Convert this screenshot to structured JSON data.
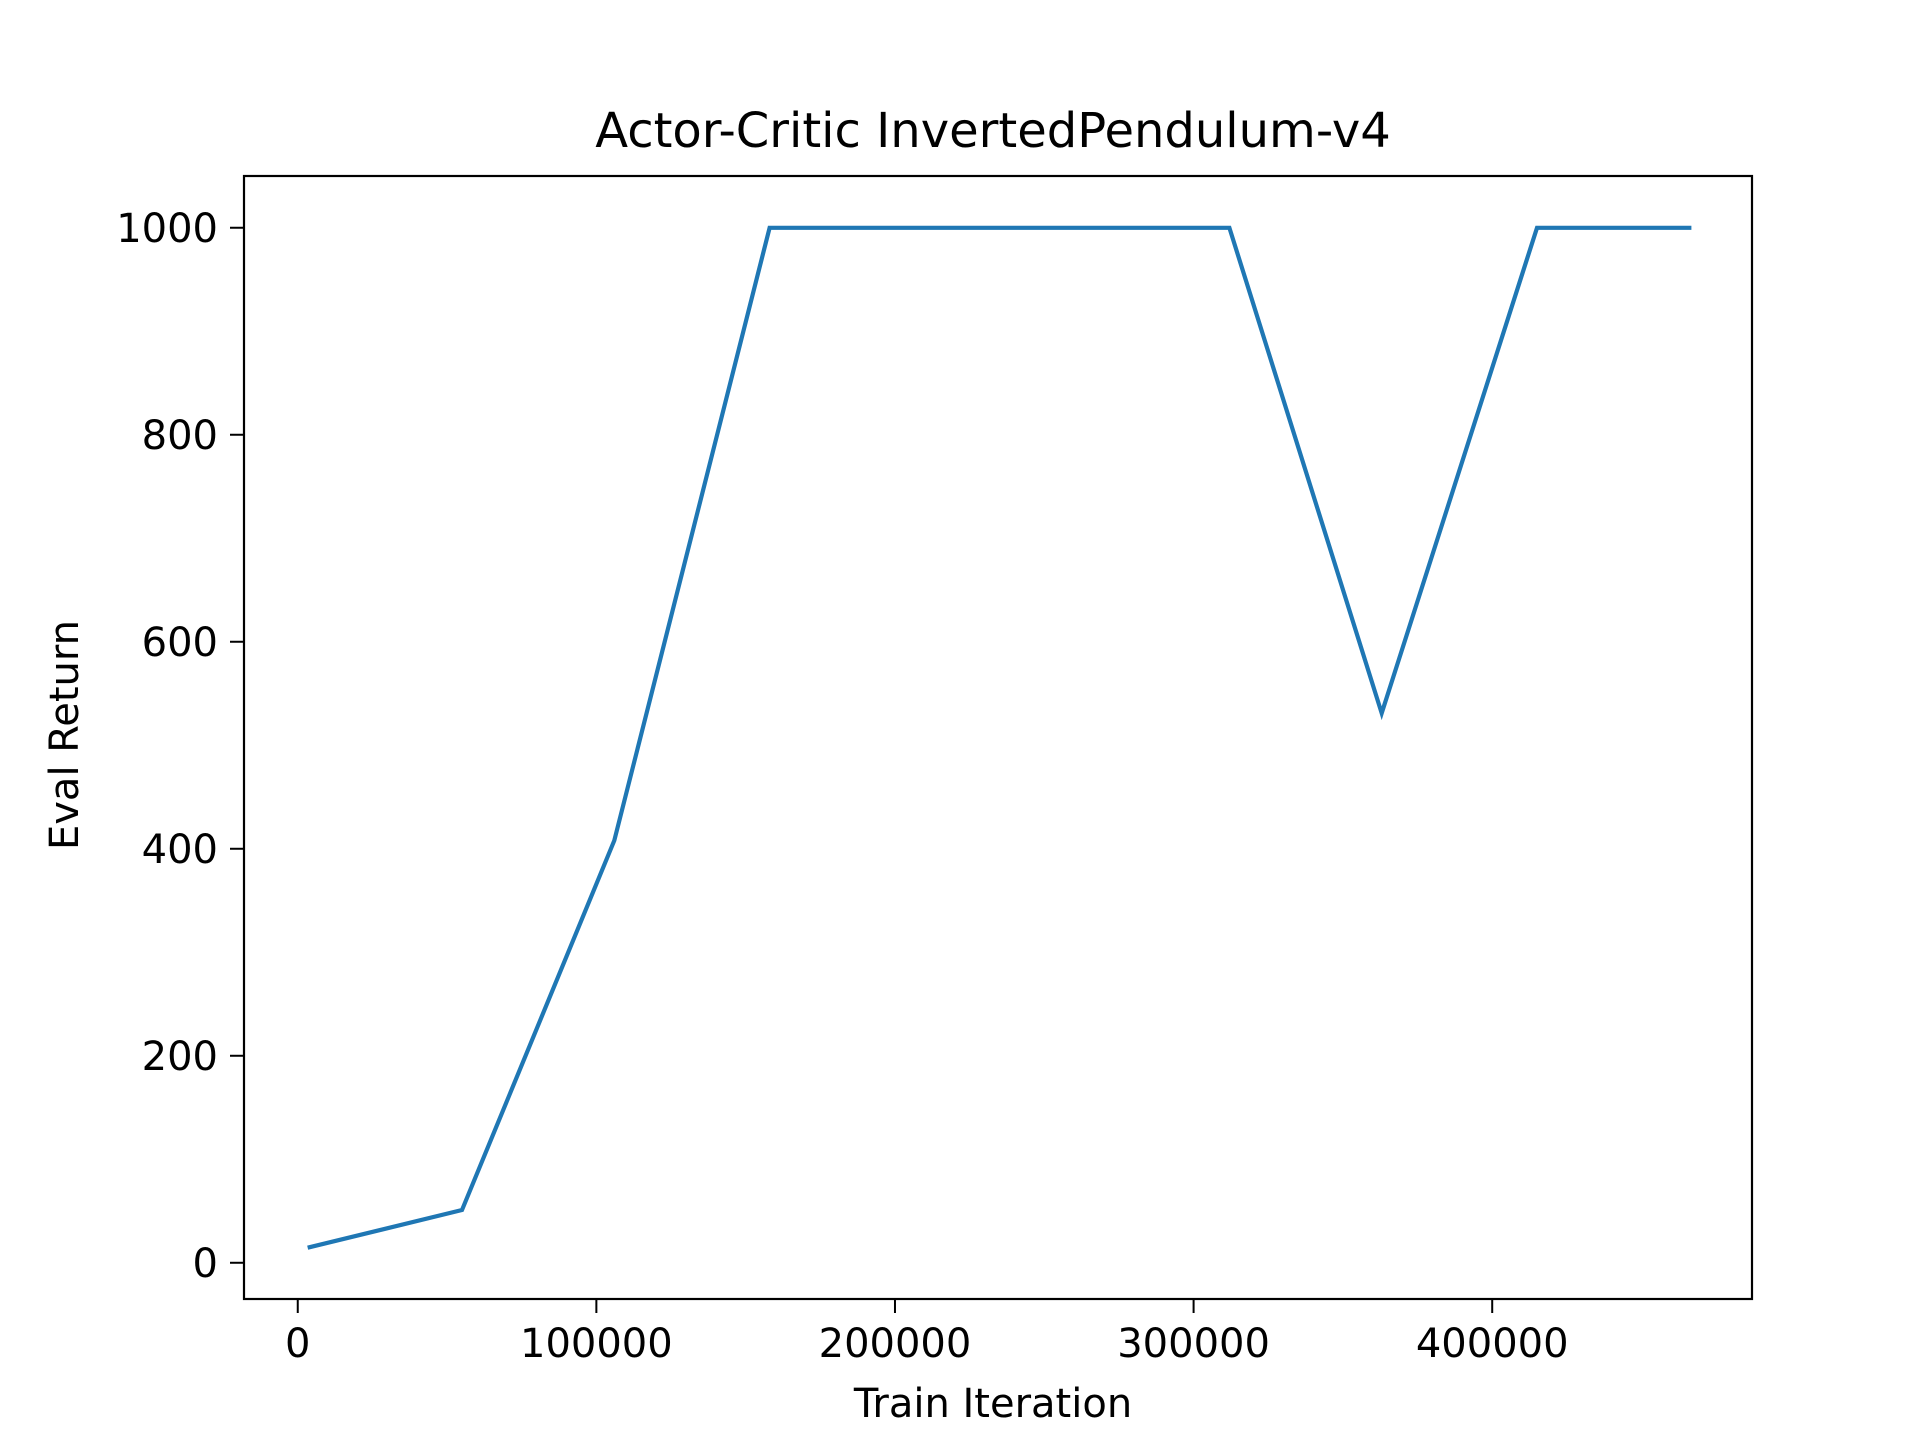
{
  "chart_data": {
    "type": "line",
    "title": "Actor-Critic InvertedPendulum-v4",
    "xlabel": "Train Iteration",
    "ylabel": "Eval Return",
    "xlim": [
      -18000,
      487000
    ],
    "ylim": [
      -35,
      1050
    ],
    "xticks": [
      0,
      100000,
      200000,
      300000,
      400000
    ],
    "xtick_labels": [
      "0",
      "100000",
      "200000",
      "300000",
      "400000"
    ],
    "yticks": [
      0,
      200,
      400,
      600,
      800,
      1000
    ],
    "ytick_labels": [
      "0",
      "200",
      "400",
      "600",
      "800",
      "1000"
    ],
    "grid": false,
    "series": [
      {
        "color": "#1f77b4",
        "x": [
          4000,
          55000,
          106000,
          158000,
          209000,
          260000,
          312000,
          363000,
          415000,
          466000
        ],
        "y": [
          15,
          51,
          408,
          1000,
          1000,
          1000,
          1000,
          531,
          1000,
          1000
        ]
      }
    ]
  }
}
